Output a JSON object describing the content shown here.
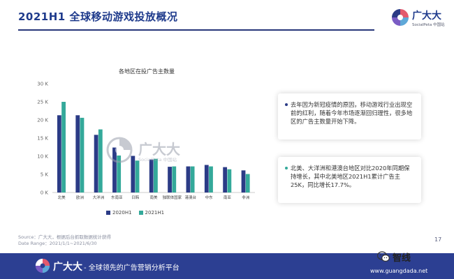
{
  "header": {
    "title": "2021H1 全球移动游戏投放概况",
    "logo_text": "广大大",
    "logo_sub": "SocialPeta 中国站"
  },
  "watermark": {
    "text": "广大大",
    "sub": "SocialPeta 中国站"
  },
  "chart_data": {
    "type": "bar",
    "title": "各地区在投广告主数量",
    "categories": [
      "北美",
      "欧洲",
      "大洋洲",
      "东南亚",
      "日韩",
      "南美",
      "独联体国家",
      "港澳台",
      "中东",
      "南亚",
      "非洲"
    ],
    "series": [
      {
        "name": "2020H1",
        "values": [
          21.3,
          21.3,
          15.9,
          12.4,
          10.1,
          9.1,
          7.1,
          7.2,
          7.6,
          7.0,
          6.1
        ],
        "color": "#2b3b86"
      },
      {
        "name": "2021H1",
        "values": [
          25.0,
          20.6,
          17.4,
          10.2,
          8.8,
          9.3,
          7.2,
          7.2,
          7.2,
          6.4,
          5.1
        ],
        "color": "#34a99a"
      }
    ],
    "y_ticks": [
      "0 K",
      "5 K",
      "10 K",
      "15 K",
      "20 K",
      "25 K",
      "30 K"
    ],
    "ylim": [
      0,
      30
    ],
    "y_unit": "K",
    "grid": false,
    "legend_position": "bottom"
  },
  "cards": [
    {
      "text": "去年因为新冠疫情的原因，移动游戏行业出现空前的红利，随着今年市场逐渐回归理性，很多地区的广告主数量开始下降。",
      "dot_color": "#2b3b86"
    },
    {
      "text": "北美、大洋洲和港澳台地区对比2020年同期保持增长，其中北美地区2021H1累计广告主25K，同比增长17.7%。",
      "dot_color": "#34a99a"
    }
  ],
  "source": {
    "line1": "Source：广大大，根据后台抓取数据统计获得",
    "line2": "Date Range：2021/1/1~2021/6/30"
  },
  "page_number": "17",
  "footer": {
    "brand": "广大大",
    "slogan": "- 全球领先的广告营销分析平台",
    "url": "www.guangdada.net"
  },
  "badge": {
    "text": "智线",
    "icon": "wechat-icon"
  },
  "colors": {
    "primary": "#2b3b86",
    "accent": "#34a99a",
    "footer_bg": "#2c3f92"
  }
}
